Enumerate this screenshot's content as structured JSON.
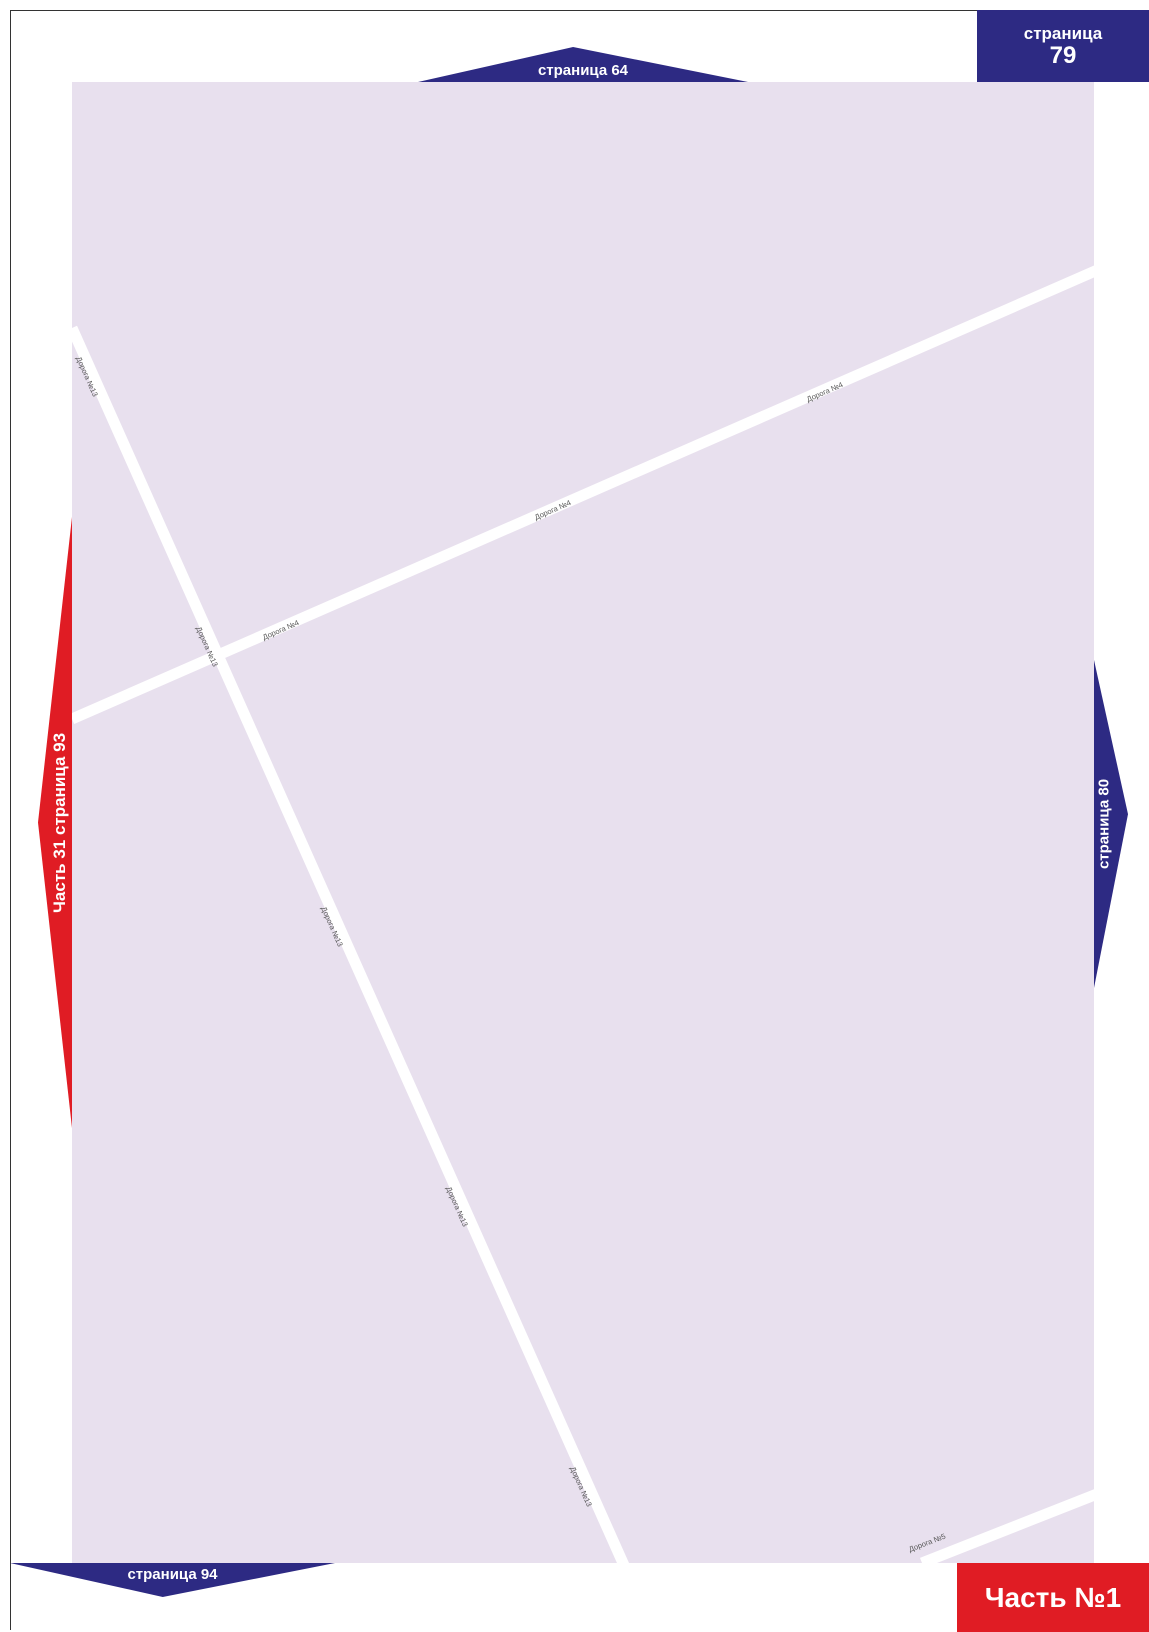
{
  "navigation": {
    "top": "страница 64",
    "corner": {
      "label": "страница",
      "number": "79"
    },
    "right": "страница 80",
    "left": "Часть 31 страница 93",
    "bottom": "страница 94"
  },
  "part_label": "Часть №1",
  "roads": [
    {
      "name": "Дорога №13",
      "labels": [
        "Дорога №13",
        "Дорога №13",
        "Дорога №13",
        "Дорога №13",
        "Дорога №13"
      ]
    },
    {
      "name": "Дорога №4",
      "labels": [
        "Дорога №4",
        "Дорога №4",
        "Дорога №4"
      ]
    },
    {
      "name": "Дорога №5",
      "labels": [
        "Дорога №5"
      ]
    }
  ],
  "colors": {
    "map_fill": "#e8e0ee",
    "road": "#ffffff",
    "nav_blue": "#2d2a83",
    "nav_red": "#e01c24"
  }
}
